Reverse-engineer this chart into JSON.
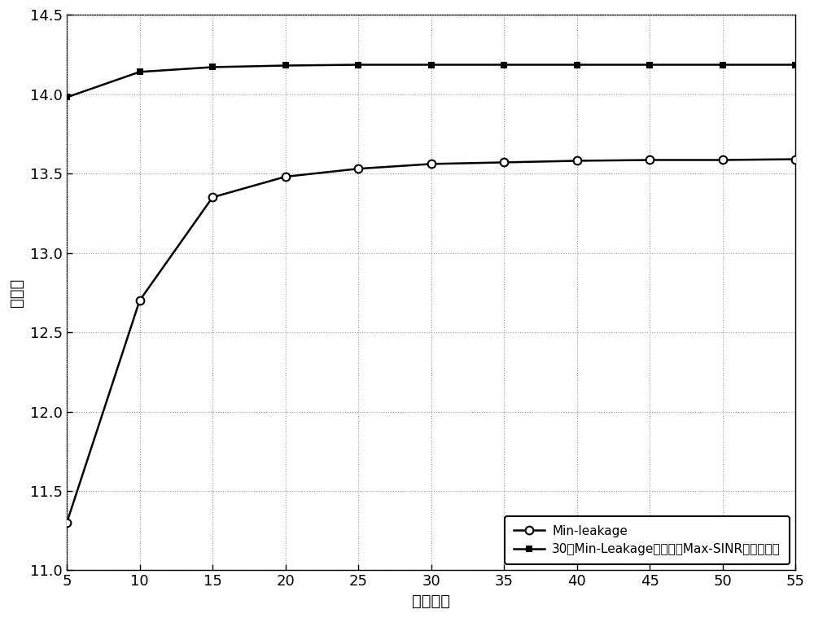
{
  "x": [
    5,
    10,
    15,
    20,
    25,
    30,
    35,
    40,
    45,
    50,
    55
  ],
  "min_leakage_y": [
    11.3,
    12.7,
    13.35,
    13.48,
    13.53,
    13.56,
    13.57,
    13.58,
    13.585,
    13.585,
    13.59
  ],
  "max_sinr_y": [
    13.98,
    14.14,
    14.17,
    14.18,
    14.185,
    14.185,
    14.185,
    14.185,
    14.185,
    14.185,
    14.185
  ],
  "line_color": "#000000",
  "xlabel": "迭代次数",
  "ylabel": "和速率",
  "legend1": "Min-leakage",
  "legend2": "30次Min-Leakage算法以后Max-SINR算法的性能",
  "xlim": [
    5,
    55
  ],
  "ylim": [
    11,
    14.5
  ],
  "yticks": [
    11,
    11.5,
    12,
    12.5,
    13,
    13.5,
    14,
    14.5
  ],
  "xticks": [
    5,
    10,
    15,
    20,
    25,
    30,
    35,
    40,
    45,
    50,
    55
  ],
  "background_color": "#ffffff",
  "grid_color": "#999999",
  "figsize": [
    10.0,
    7.59
  ],
  "dpi": 100
}
